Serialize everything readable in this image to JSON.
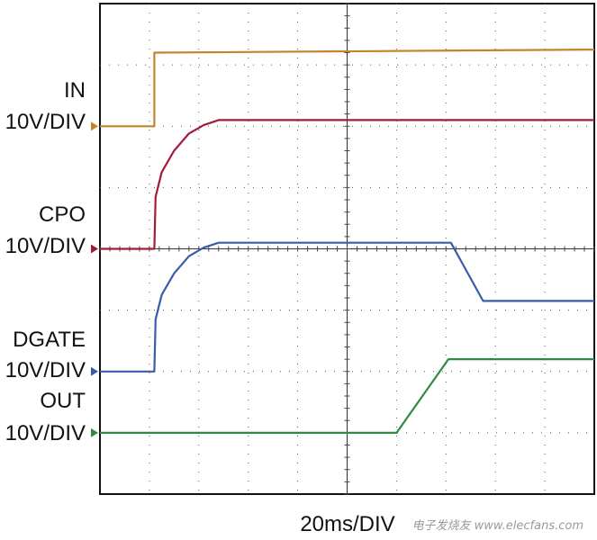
{
  "chart_data": {
    "type": "line",
    "title": "",
    "xlabel": "20ms/DIV",
    "ylabel": "",
    "x_unit": "ms",
    "x_per_div": 20,
    "divisions_x": 10,
    "divisions_y": 8,
    "xlim": [
      0,
      200
    ],
    "ylim_div": [
      0,
      8
    ],
    "grid": true,
    "series": [
      {
        "name": "IN",
        "scale": "10V/DIV",
        "color": "#C4852A",
        "marker_level_div": 6.0,
        "x": [
          0,
          22,
          22,
          200
        ],
        "y": [
          6.0,
          6.0,
          7.2,
          7.25
        ]
      },
      {
        "name": "CPO",
        "scale": "10V/DIV",
        "color": "#A31B3A",
        "marker_level_div": 4.0,
        "x": [
          0,
          22,
          22.5,
          25,
          30,
          36,
          42,
          48,
          200
        ],
        "y": [
          4.0,
          4.0,
          4.85,
          5.25,
          5.6,
          5.88,
          6.02,
          6.1,
          6.1
        ]
      },
      {
        "name": "DGATE",
        "scale": "10V/DIV",
        "color": "#3A5CA8",
        "marker_level_div": 2.0,
        "x": [
          0,
          22,
          22.5,
          25,
          30,
          36,
          42,
          48,
          142,
          155,
          200
        ],
        "y": [
          2.0,
          2.0,
          2.85,
          3.25,
          3.6,
          3.88,
          4.02,
          4.1,
          4.1,
          3.15,
          3.15
        ]
      },
      {
        "name": "OUT",
        "scale": "10V/DIV",
        "color": "#2E8B45",
        "marker_level_div": 1.0,
        "x": [
          0,
          120,
          141,
          200
        ],
        "y": [
          1.0,
          1.0,
          2.2,
          2.2
        ]
      }
    ],
    "labels": [
      {
        "name": "IN",
        "scale": "10V/DIV"
      },
      {
        "name": "CPO",
        "scale": "10V/DIV"
      },
      {
        "name": "DGATE",
        "scale": "10V/DIV"
      },
      {
        "name": "OUT",
        "scale": "10V/DIV"
      }
    ]
  },
  "watermark": "电子发烧友 www.elecfans.com"
}
